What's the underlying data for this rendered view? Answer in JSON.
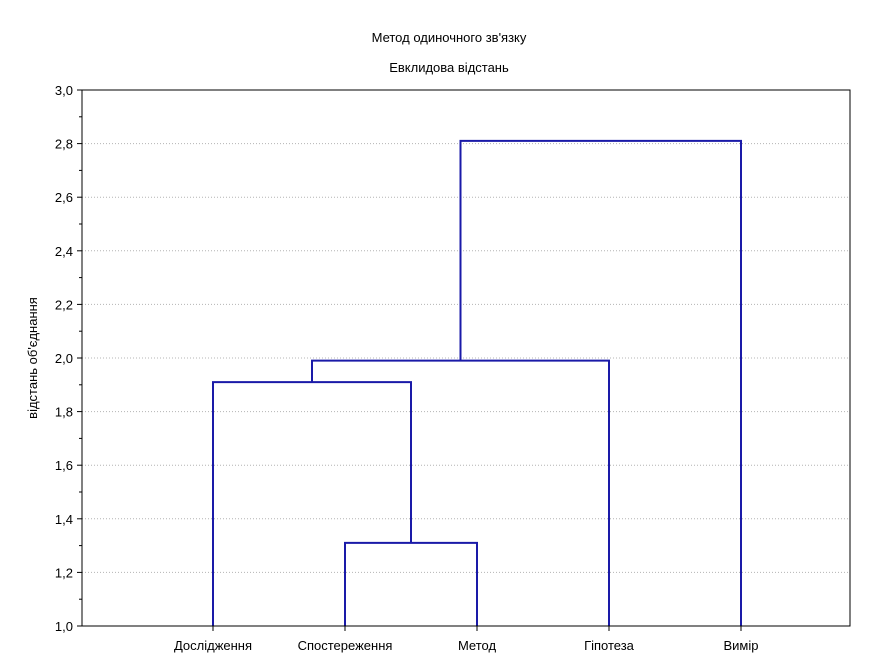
{
  "chart_data": {
    "type": "dendrogram",
    "title": "Метод одиночного зв'язку",
    "subtitle": "Евклидова відстань",
    "ylabel": "відстань об'єднання",
    "xlabel": "",
    "ylim": [
      1.0,
      3.0
    ],
    "yticks": [
      "1,0",
      "1,2",
      "1,4",
      "1,6",
      "1,8",
      "2,0",
      "2,2",
      "2,4",
      "2,6",
      "2,8",
      "3,0"
    ],
    "ytick_values": [
      1.0,
      1.2,
      1.4,
      1.6,
      1.8,
      2.0,
      2.2,
      2.4,
      2.6,
      2.8,
      3.0
    ],
    "grid": true,
    "leaves": [
      "Дослідження",
      "Спостереження",
      "Метод",
      "Гіпотеза",
      "Вимір"
    ],
    "merges": [
      {
        "left": "Спостереження",
        "right": "Метод",
        "height": 1.31
      },
      {
        "left": "Дослідження",
        "right": 0,
        "height": 1.91
      },
      {
        "left": 1,
        "right": "Гіпотеза",
        "height": 1.99
      },
      {
        "left": 2,
        "right": "Вимір",
        "height": 2.81
      }
    ],
    "line_color": "#1a1aa8"
  }
}
